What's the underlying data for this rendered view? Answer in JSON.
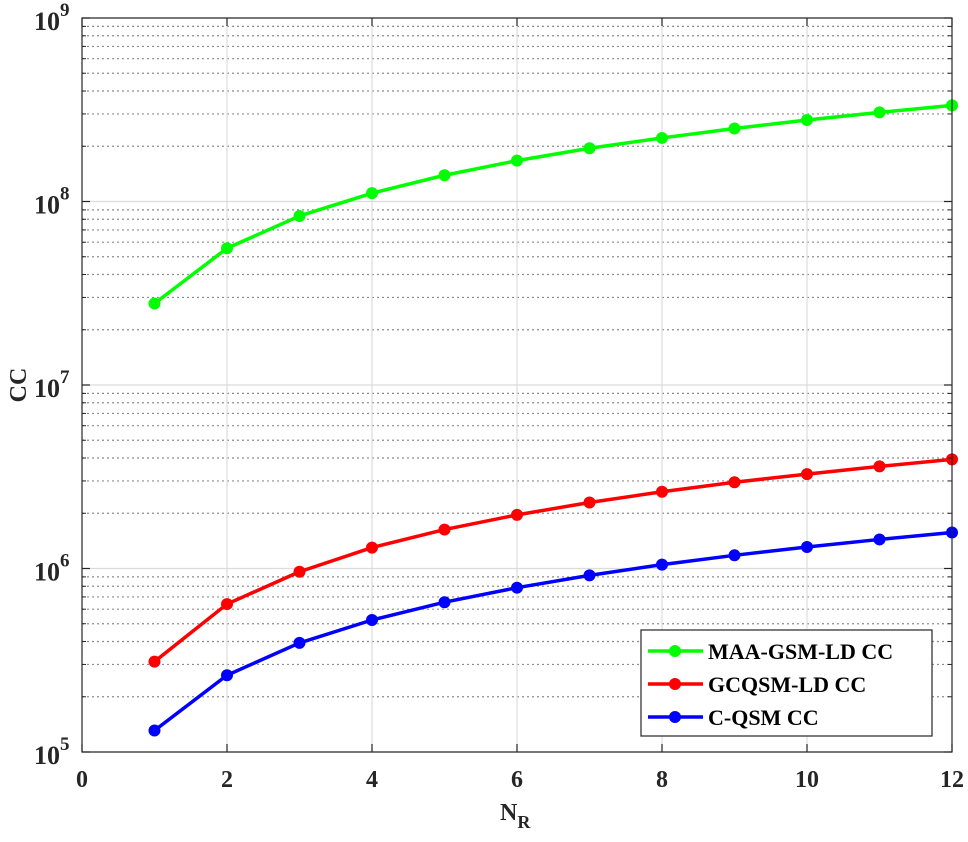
{
  "chart_data": {
    "type": "line",
    "title": "",
    "xlabel": "N_R",
    "ylabel": "CC",
    "yscale": "log",
    "xlim": [
      0,
      12
    ],
    "ylim": [
      100000,
      1000000000
    ],
    "x_ticks": [
      0,
      2,
      4,
      6,
      8,
      10,
      12
    ],
    "y_ticks": [
      100000,
      1000000,
      10000000,
      100000000,
      1000000000
    ],
    "y_tick_labels": [
      {
        "base": "10",
        "exp": "5"
      },
      {
        "base": "10",
        "exp": "6"
      },
      {
        "base": "10",
        "exp": "7"
      },
      {
        "base": "10",
        "exp": "8"
      },
      {
        "base": "10",
        "exp": "9"
      }
    ],
    "grid": {
      "major": true,
      "minor": true
    },
    "legend_position": "lower right",
    "x": [
      1,
      2,
      3,
      4,
      5,
      6,
      7,
      8,
      9,
      10,
      11,
      12
    ],
    "series": [
      {
        "name": "MAA-GSM-LD CC",
        "color": "#00ff00",
        "values": [
          27800000,
          55600000,
          83400000,
          111000000,
          139000000,
          167000000,
          195000000,
          222000000,
          250000000,
          278000000,
          306000000,
          334000000
        ]
      },
      {
        "name": "GCQSM-LD CC",
        "color": "#ff0000",
        "values": [
          311000,
          640000,
          960000,
          1300000,
          1630000,
          1960000,
          2290000,
          2620000,
          2950000,
          3270000,
          3600000,
          3930000
        ]
      },
      {
        "name": "C-QSM CC",
        "color": "#0000ff",
        "values": [
          131000,
          262000,
          393000,
          524000,
          655000,
          786000,
          917000,
          1050000,
          1180000,
          1310000,
          1440000,
          1570000
        ]
      }
    ]
  },
  "axis": {
    "xlabel_main": "N",
    "xlabel_sub": "R",
    "ylabel": "CC"
  }
}
